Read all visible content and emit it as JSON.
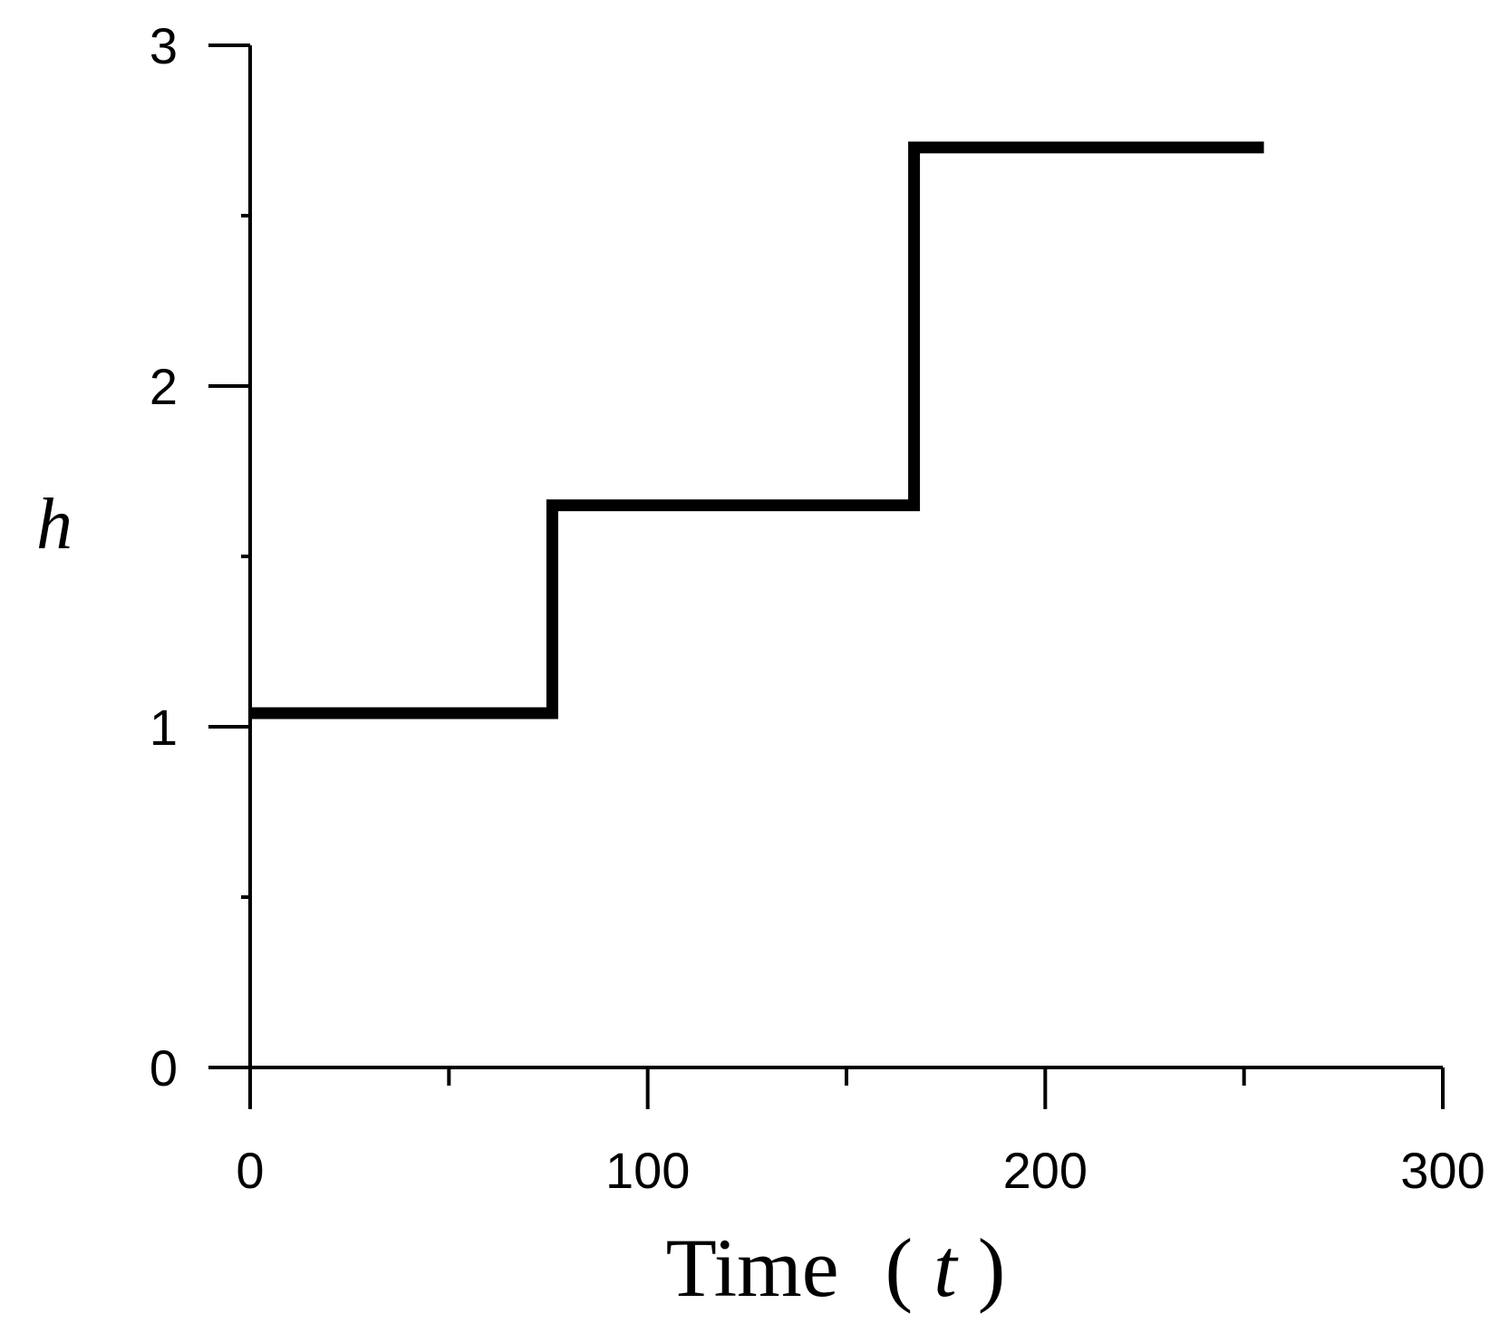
{
  "chart_data": {
    "type": "line",
    "step": true,
    "xlabel": {
      "prefix": "Time",
      "open_paren": "(",
      "var": "t",
      "close_paren": ")"
    },
    "ylabel": "h",
    "xlim": [
      0,
      300
    ],
    "ylim": [
      0,
      3
    ],
    "xticks": [
      0,
      100,
      200,
      300
    ],
    "xticks_minor": [
      50,
      150,
      250
    ],
    "yticks": [
      0,
      1,
      2,
      3
    ],
    "yticks_minor": [
      0.5,
      1.5,
      2.5
    ],
    "grid": false,
    "series": [
      {
        "x": [
          0,
          76,
          76,
          167,
          167,
          255
        ],
        "y": [
          1.04,
          1.04,
          1.65,
          1.65,
          2.7,
          2.7
        ],
        "color": "#000000"
      }
    ]
  }
}
